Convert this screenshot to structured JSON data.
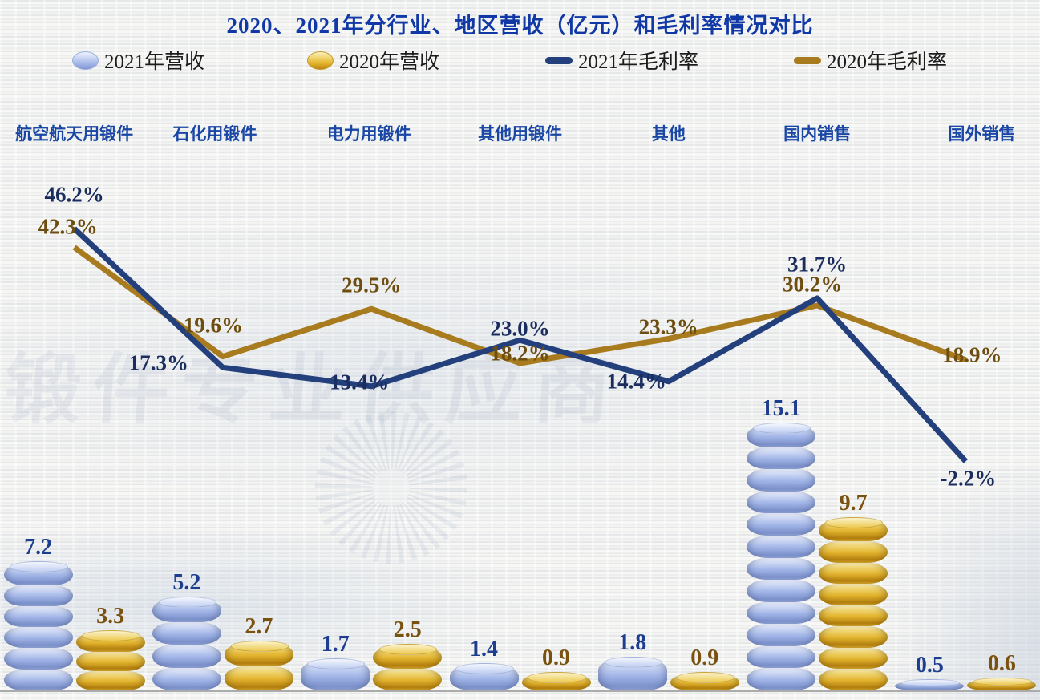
{
  "title": "2020、2021年分行业、地区营收（亿元）和毛利率情况对比",
  "legend": {
    "items": [
      {
        "label": "2021年营收",
        "swatch": "coin-blue"
      },
      {
        "label": "2020年营收",
        "swatch": "coin-gold"
      },
      {
        "label": "2021年毛利率",
        "swatch": "line-navy"
      },
      {
        "label": "2020年毛利率",
        "swatch": "line-gold"
      }
    ]
  },
  "watermark": {
    "text": "锻件专业供应商"
  },
  "chart_data": {
    "type": "bar+line combo",
    "title": "2020、2021年分行业、地区营收（亿元）和毛利率情况对比",
    "categories": [
      "航空航天用锻件",
      "石化用锻件",
      "电力用锻件",
      "其他用锻件",
      "其他",
      "国内销售",
      "国外销售"
    ],
    "bar_unit": "亿元",
    "line_unit": "%",
    "legend_position": "top",
    "grid": false,
    "bar_series": [
      {
        "name": "2021年营收",
        "values": [
          7.2,
          5.2,
          1.7,
          1.4,
          1.8,
          15.1,
          0.5
        ],
        "labels": [
          "7.2",
          "5.2",
          "1.7",
          "1.4",
          "1.8",
          "15.1",
          "0.5"
        ]
      },
      {
        "name": "2020年营收",
        "values": [
          3.3,
          2.7,
          2.5,
          0.9,
          0.9,
          9.7,
          0.6
        ],
        "labels": [
          "3.3",
          "2.7",
          "2.5",
          "0.9",
          "0.9",
          "9.7",
          "0.6"
        ]
      }
    ],
    "line_series": [
      {
        "name": "2021年毛利率",
        "values": [
          46.2,
          17.3,
          13.4,
          23.0,
          14.4,
          31.7,
          -2.2
        ],
        "labels": [
          "46.2%",
          "17.3%",
          "13.4%",
          "23.0%",
          "14.4%",
          "31.7%",
          "-2.2%"
        ]
      },
      {
        "name": "2020年毛利率",
        "values": [
          42.3,
          19.6,
          29.5,
          18.2,
          23.3,
          30.2,
          18.9
        ],
        "labels": [
          "42.3%",
          "19.6%",
          "29.5%",
          "18.2%",
          "23.3%",
          "30.2%",
          "18.9%"
        ]
      }
    ]
  },
  "colors": {
    "title": "#1038a6",
    "category_label": "#1a47a5",
    "legend_text": "#1c1c1c",
    "line_2021": "#24407c",
    "line_2020": "#a87c1e",
    "pct_label_2021": "#1b2d5e",
    "pct_label_2020": "#6e4e10",
    "bar_label_2021": "#1d3e8f",
    "bar_label_2020": "#7a5210",
    "bar_2021": "#9fb3e6",
    "bar_2020": "#e3b52f"
  }
}
